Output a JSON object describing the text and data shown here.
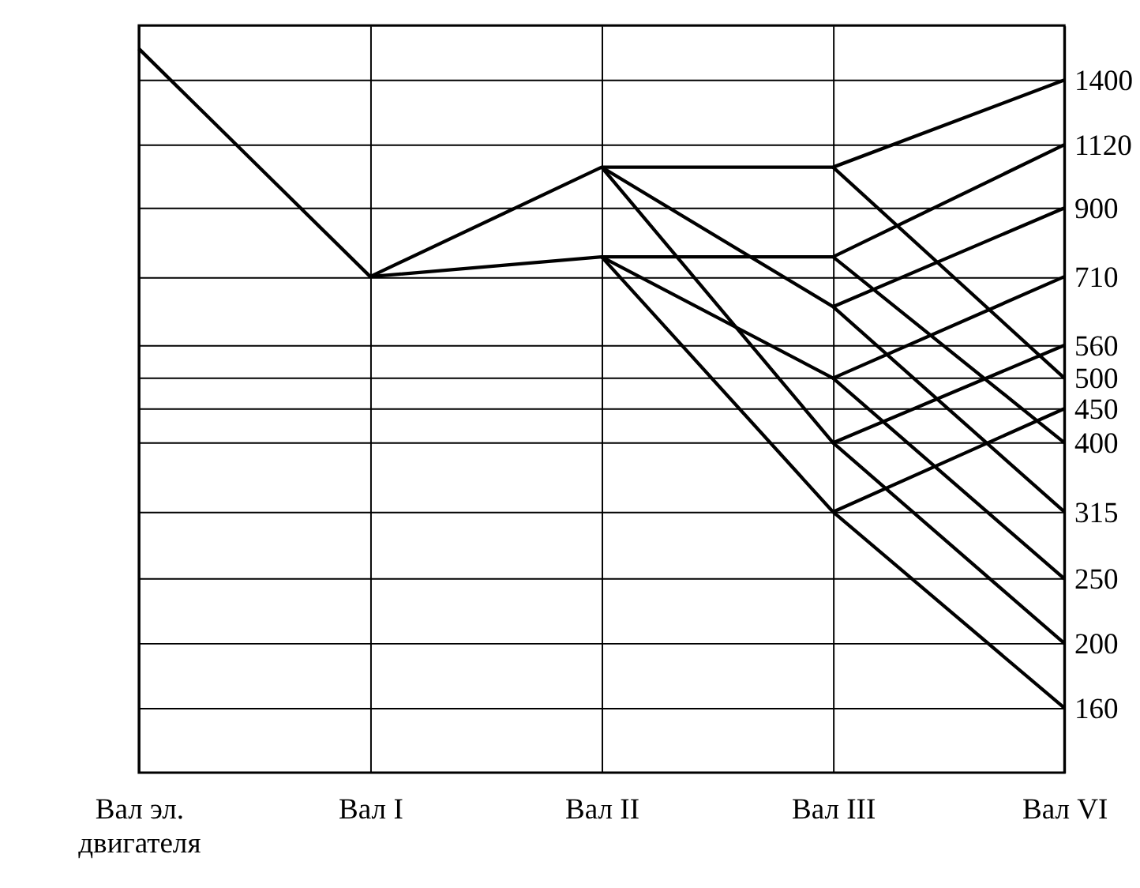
{
  "chart_data": {
    "type": "line",
    "categories": [
      "Вал эл.\nдвигателя",
      "Вал I",
      "Вал II",
      "Вал III",
      "Вал VI"
    ],
    "ylim": [
      128,
      1690
    ],
    "yticks": [
      160,
      200,
      250,
      315,
      400,
      450,
      500,
      560,
      710,
      900,
      1120,
      1400
    ],
    "log": true,
    "grid": true,
    "legend": false,
    "marker": "none",
    "line_style": "solid",
    "series": [
      {
        "color": "#000000",
        "values": [
          1560,
          710,
          760,
          760,
          400
        ]
      },
      {
        "color": "#000000",
        "values": [
          null,
          710,
          1036,
          1036,
          1400
        ]
      },
      {
        "color": "#000000",
        "values": [
          null,
          null,
          null,
          1036,
          500
        ]
      },
      {
        "color": "#000000",
        "values": [
          null,
          null,
          null,
          760,
          1120
        ]
      },
      {
        "color": "#000000",
        "values": [
          null,
          null,
          1036,
          640,
          900
        ]
      },
      {
        "color": "#000000",
        "values": [
          null,
          null,
          null,
          640,
          315
        ]
      },
      {
        "color": "#000000",
        "values": [
          null,
          null,
          760,
          500,
          710
        ]
      },
      {
        "color": "#000000",
        "values": [
          null,
          null,
          null,
          500,
          250
        ]
      },
      {
        "color": "#000000",
        "values": [
          null,
          null,
          1036,
          400,
          560
        ]
      },
      {
        "color": "#000000",
        "values": [
          null,
          null,
          null,
          400,
          200
        ]
      },
      {
        "color": "#000000",
        "values": [
          null,
          null,
          760,
          315,
          450
        ]
      },
      {
        "color": "#000000",
        "values": [
          null,
          null,
          null,
          315,
          160
        ]
      }
    ]
  }
}
